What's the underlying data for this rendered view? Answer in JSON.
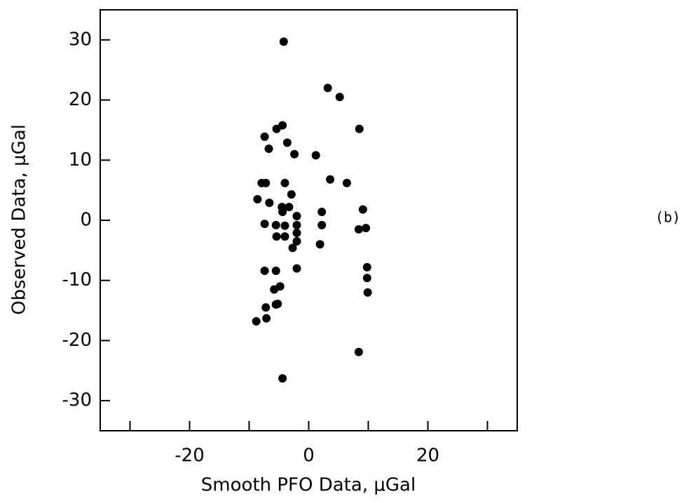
{
  "chart_data": {
    "type": "scatter",
    "xlabel": "Smooth PFO Data, μGal",
    "ylabel": "Observed Data, μGal",
    "annotation": "(b)",
    "color": "#000000",
    "xlim": [
      -35,
      35
    ],
    "ylim": [
      -35,
      35
    ],
    "xticks": [
      -20,
      0,
      20
    ],
    "xminor_ticks": [
      -30,
      -10,
      10,
      30
    ],
    "yticks": [
      -30,
      -20,
      -10,
      0,
      10,
      20,
      30
    ],
    "x": [
      -4.2,
      3.2,
      5.2,
      8.5,
      -7.4,
      -4.4,
      -5.4,
      -6.7,
      -3.6,
      -2.4,
      1.2,
      3.6,
      6.4,
      -7.9,
      -7.2,
      -4.0,
      -2.9,
      -8.6,
      -6.6,
      -4.5,
      -3.3,
      -4.4,
      2.2,
      9.1,
      -2.0,
      -7.4,
      -5.5,
      -4.0,
      -2.0,
      2.2,
      8.4,
      9.6,
      -5.4,
      -4.0,
      -2.0,
      -2.0,
      -2.7,
      1.9,
      -7.4,
      -5.5,
      -2.0,
      9.8,
      9.8,
      9.9,
      -4.8,
      -5.8,
      -7.2,
      -5.5,
      -5.2,
      -7.1,
      -8.8,
      8.4,
      -4.4
    ],
    "values": [
      29.7,
      22.0,
      20.5,
      15.2,
      13.9,
      15.8,
      15.2,
      11.9,
      12.9,
      11.0,
      10.8,
      6.8,
      6.2,
      6.2,
      6.2,
      6.2,
      4.3,
      3.5,
      2.9,
      2.2,
      2.2,
      1.4,
      1.4,
      1.8,
      0.7,
      -0.6,
      -0.8,
      -0.9,
      -0.8,
      -0.8,
      -1.5,
      -1.3,
      -2.7,
      -2.7,
      -2.1,
      -3.5,
      -4.6,
      -4.0,
      -8.4,
      -8.4,
      -8.0,
      -7.8,
      -9.6,
      -12.0,
      -11.0,
      -11.5,
      -14.5,
      -14.0,
      -13.9,
      -16.3,
      -16.8,
      -21.9,
      -26.3
    ]
  }
}
